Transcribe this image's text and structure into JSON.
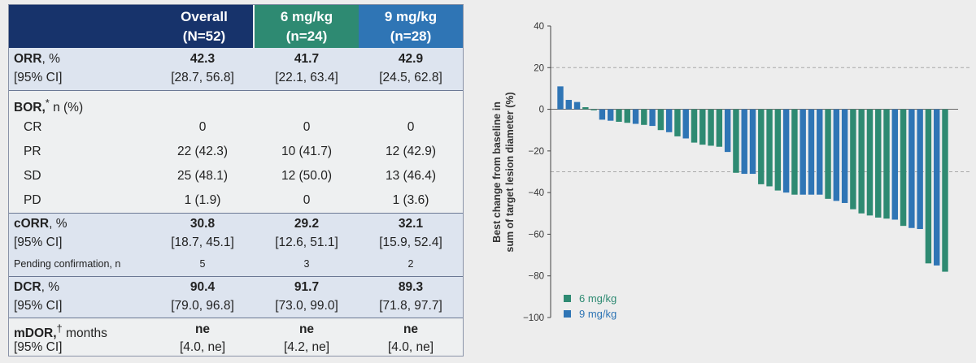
{
  "table": {
    "headers": [
      {
        "line1": "Overall",
        "line2": "(N=52)",
        "color": "#17336b"
      },
      {
        "line1": "6 mg/kg",
        "line2": "(n=24)",
        "color": "#2e8a72"
      },
      {
        "line1": "9 mg/kg",
        "line2": "(n=28)",
        "color": "#2f75b5"
      }
    ],
    "orr": {
      "label": "ORR",
      "unit": ", %",
      "ci_label": "[95% CI]",
      "values": [
        "42.3",
        "41.7",
        "42.9"
      ],
      "ci": [
        "[28.7, 56.8]",
        "[22.1, 63.4]",
        "[24.5, 62.8]"
      ]
    },
    "bor": {
      "label": "BOR,",
      "mark": "*",
      "unit": " n (%)",
      "rows": [
        {
          "label": "CR",
          "values": [
            "0",
            "0",
            "0"
          ]
        },
        {
          "label": "PR",
          "values": [
            "22 (42.3)",
            "10 (41.7)",
            "12 (42.9)"
          ]
        },
        {
          "label": "SD",
          "values": [
            "25 (48.1)",
            "12 (50.0)",
            "13 (46.4)"
          ]
        },
        {
          "label": "PD",
          "values": [
            "1 (1.9)",
            "0",
            "1 (3.6)"
          ]
        }
      ]
    },
    "corr": {
      "label": "cORR",
      "unit": ", %",
      "ci_label": "[95% CI]",
      "values": [
        "30.8",
        "29.2",
        "32.1"
      ],
      "ci": [
        "[18.7, 45.1]",
        "[12.6, 51.1]",
        "[15.9, 52.4]"
      ],
      "pending_label": "Pending confirmation, n",
      "pending": [
        "5",
        "3",
        "2"
      ]
    },
    "dcr": {
      "label": "DCR",
      "unit": ", %",
      "ci_label": "[95% CI]",
      "values": [
        "90.4",
        "91.7",
        "89.3"
      ],
      "ci": [
        "[79.0, 96.8]",
        "[73.0, 99.0]",
        "[71.8, 97.7]"
      ]
    },
    "mdor": {
      "label": "mDOR,",
      "mark": "†",
      "unit": " months",
      "ci_label": "[95% CI]",
      "values": [
        "ne",
        "ne",
        "ne"
      ],
      "ci": [
        "[4.0, ne]",
        "[4.2, ne]",
        "[4.0, ne]"
      ]
    }
  },
  "chart_data": {
    "type": "bar",
    "ylabel_line1": "Best change from baseline in",
    "ylabel_line2": "sum of target lesion diameter (%)",
    "ylim": [
      -100,
      40
    ],
    "yticks": [
      40,
      20,
      0,
      -20,
      -40,
      -60,
      -80,
      -100
    ],
    "reference_lines": [
      20,
      -30
    ],
    "legend": [
      {
        "name": "6 mg/kg",
        "color": "#2e8a72"
      },
      {
        "name": "9 mg/kg",
        "color": "#2f75b5"
      }
    ],
    "legend_position": "bottom-left",
    "bars": [
      {
        "dose": "9 mg/kg",
        "value": 11
      },
      {
        "dose": "9 mg/kg",
        "value": 4.5
      },
      {
        "dose": "9 mg/kg",
        "value": 3.5
      },
      {
        "dose": "6 mg/kg",
        "value": 1
      },
      {
        "dose": "6 mg/kg",
        "value": -0.5
      },
      {
        "dose": "9 mg/kg",
        "value": -5
      },
      {
        "dose": "9 mg/kg",
        "value": -5.5
      },
      {
        "dose": "6 mg/kg",
        "value": -6
      },
      {
        "dose": "6 mg/kg",
        "value": -6.5
      },
      {
        "dose": "9 mg/kg",
        "value": -7
      },
      {
        "dose": "6 mg/kg",
        "value": -7.5
      },
      {
        "dose": "9 mg/kg",
        "value": -8
      },
      {
        "dose": "6 mg/kg",
        "value": -10
      },
      {
        "dose": "9 mg/kg",
        "value": -11
      },
      {
        "dose": "6 mg/kg",
        "value": -13
      },
      {
        "dose": "9 mg/kg",
        "value": -14
      },
      {
        "dose": "6 mg/kg",
        "value": -16
      },
      {
        "dose": "6 mg/kg",
        "value": -17
      },
      {
        "dose": "6 mg/kg",
        "value": -17.5
      },
      {
        "dose": "6 mg/kg",
        "value": -18
      },
      {
        "dose": "9 mg/kg",
        "value": -20.5
      },
      {
        "dose": "6 mg/kg",
        "value": -30.5
      },
      {
        "dose": "9 mg/kg",
        "value": -31
      },
      {
        "dose": "9 mg/kg",
        "value": -31
      },
      {
        "dose": "6 mg/kg",
        "value": -36
      },
      {
        "dose": "6 mg/kg",
        "value": -37
      },
      {
        "dose": "6 mg/kg",
        "value": -39
      },
      {
        "dose": "9 mg/kg",
        "value": -40
      },
      {
        "dose": "6 mg/kg",
        "value": -41
      },
      {
        "dose": "9 mg/kg",
        "value": -41
      },
      {
        "dose": "9 mg/kg",
        "value": -41
      },
      {
        "dose": "9 mg/kg",
        "value": -41
      },
      {
        "dose": "6 mg/kg",
        "value": -43
      },
      {
        "dose": "9 mg/kg",
        "value": -44
      },
      {
        "dose": "9 mg/kg",
        "value": -45
      },
      {
        "dose": "6 mg/kg",
        "value": -48
      },
      {
        "dose": "6 mg/kg",
        "value": -50
      },
      {
        "dose": "6 mg/kg",
        "value": -51
      },
      {
        "dose": "6 mg/kg",
        "value": -52
      },
      {
        "dose": "6 mg/kg",
        "value": -52.5
      },
      {
        "dose": "9 mg/kg",
        "value": -53
      },
      {
        "dose": "6 mg/kg",
        "value": -56
      },
      {
        "dose": "9 mg/kg",
        "value": -57
      },
      {
        "dose": "9 mg/kg",
        "value": -57.5
      },
      {
        "dose": "6 mg/kg",
        "value": -74
      },
      {
        "dose": "9 mg/kg",
        "value": -75
      },
      {
        "dose": "6 mg/kg",
        "value": -78
      }
    ]
  }
}
